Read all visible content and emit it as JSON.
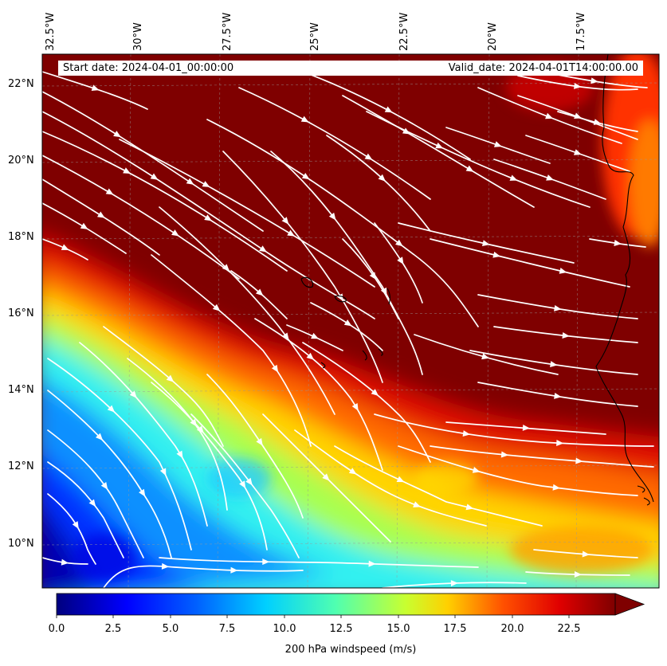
{
  "header": {
    "start_date": "Start date: 2024-04-01_00:00:00",
    "valid_date": "Valid_date: 2024-04-01T14:00:00.00"
  },
  "lon_labels": [
    "32.5°W",
    "30°W",
    "27.5°W",
    "25°W",
    "22.5°W",
    "20°W",
    "17.5°W"
  ],
  "lat_labels": [
    "22°N",
    "20°N",
    "18°N",
    "16°N",
    "14°N",
    "12°N",
    "10°N"
  ],
  "colorbar": {
    "title": "200 hPa windspeed (m/s)",
    "ticks": [
      "0.0",
      "2.5",
      "5.0",
      "7.5",
      "10.0",
      "12.5",
      "15.0",
      "17.5",
      "20.0",
      "22.5"
    ],
    "min": 0,
    "max": 25,
    "extend": "max"
  },
  "colors": {
    "stream": "#ffffff",
    "coast": "#000000",
    "jet": [
      "#00007f",
      "#0000ff",
      "#007fff",
      "#00ffff",
      "#7fff7f",
      "#ffff00",
      "#ff7f00",
      "#ff0000",
      "#7f0000"
    ]
  }
}
